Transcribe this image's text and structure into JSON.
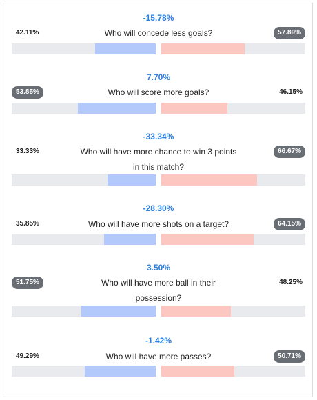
{
  "polls": [
    {
      "diff": "-15.78%",
      "question": "Who will concede less goals?",
      "left_pct": "42.11%",
      "right_pct": "57.89%",
      "left_value": 42.11,
      "right_value": 57.89,
      "badge_side": "right"
    },
    {
      "diff": "7.70%",
      "question": "Who will score more goals?",
      "left_pct": "53.85%",
      "right_pct": "46.15%",
      "left_value": 53.85,
      "right_value": 46.15,
      "badge_side": "left"
    },
    {
      "diff": "-33.34%",
      "question": "Who will have more chance to win 3 points in this match?",
      "left_pct": "33.33%",
      "right_pct": "66.67%",
      "left_value": 33.33,
      "right_value": 66.67,
      "badge_side": "right"
    },
    {
      "diff": "-28.30%",
      "question": "Who will have more shots on a target?",
      "left_pct": "35.85%",
      "right_pct": "64.15%",
      "left_value": 35.85,
      "right_value": 64.15,
      "badge_side": "right"
    },
    {
      "diff": "3.50%",
      "question": "Who will have more ball in their possession?",
      "left_pct": "51.75%",
      "right_pct": "48.25%",
      "left_value": 51.75,
      "right_value": 48.25,
      "badge_side": "left"
    },
    {
      "diff": "-1.42%",
      "question": "Who will have more passes?",
      "left_pct": "49.29%",
      "right_pct": "50.71%",
      "left_value": 49.29,
      "right_value": 50.71,
      "badge_side": "right"
    }
  ],
  "colors": {
    "diff_text": "#2a7de1",
    "left_fill": "#b3c9fb",
    "right_fill": "#fdc7c1",
    "track": "#e8eaed",
    "badge": "#696e75"
  }
}
